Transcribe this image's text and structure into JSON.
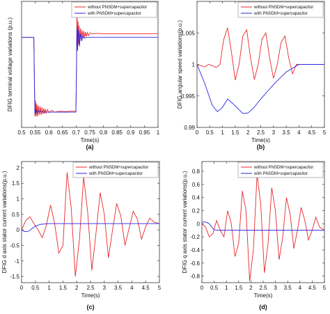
{
  "chart_data": [
    {
      "panel": "(a)",
      "type": "line",
      "title": "",
      "xlabel": "Time(s)",
      "ylabel": "DFIG terminal voltage variations (p.u.)",
      "xlim": [
        0.5,
        1
      ],
      "ylim": [
        0,
        1.4
      ],
      "xticks": [
        "0.5",
        "0.55",
        "0.6",
        "0.65",
        "0.7",
        "0.75",
        "0.8",
        "0.85",
        "0.9",
        "0.95",
        "1"
      ],
      "yticks": [],
      "legend": "top-right",
      "series": [
        {
          "name": "without PNSDM+supercapacitor",
          "color": "#e8262b",
          "x": [
            0.5,
            0.545,
            0.547,
            0.549,
            0.5505,
            0.552,
            0.554,
            0.556,
            0.558,
            0.56,
            0.563,
            0.566,
            0.569,
            0.572,
            0.575,
            0.578,
            0.581,
            0.584,
            0.587,
            0.59,
            0.595,
            0.6,
            0.61,
            0.62,
            0.64,
            0.66,
            0.68,
            0.699,
            0.701,
            0.703,
            0.705,
            0.707,
            0.709,
            0.711,
            0.713,
            0.716,
            0.719,
            0.722,
            0.725,
            0.728,
            0.731,
            0.734,
            0.737,
            0.741,
            0.745,
            0.75,
            0.76,
            0.78,
            0.8,
            0.85,
            0.9,
            0.95,
            1.0
          ],
          "y": [
            1.0,
            1.0,
            0.55,
            0.12,
            0.3,
            0.13,
            0.27,
            0.12,
            0.25,
            0.13,
            0.24,
            0.14,
            0.23,
            0.14,
            0.22,
            0.15,
            0.21,
            0.15,
            0.205,
            0.16,
            0.2,
            0.165,
            0.19,
            0.17,
            0.18,
            0.175,
            0.18,
            0.18,
            0.6,
            1.38,
            0.85,
            1.18,
            0.92,
            1.13,
            0.95,
            1.1,
            0.97,
            1.08,
            0.99,
            1.07,
            1.0,
            1.06,
            1.01,
            1.055,
            1.02,
            1.05,
            1.04,
            1.045,
            1.04,
            1.04,
            1.04,
            1.04,
            1.04
          ]
        },
        {
          "name": "with PNSDM+supercapacitor",
          "color": "#2727e6",
          "x": [
            0.5,
            0.545,
            0.547,
            0.549,
            0.552,
            0.556,
            0.56,
            0.565,
            0.57,
            0.58,
            0.6,
            0.65,
            0.699,
            0.701,
            0.703,
            0.705,
            0.708,
            0.712,
            0.716,
            0.72,
            0.725,
            0.73,
            0.74,
            0.75,
            0.8,
            0.9,
            1.0
          ],
          "y": [
            1.0,
            1.0,
            0.5,
            0.15,
            0.2,
            0.16,
            0.18,
            0.17,
            0.175,
            0.17,
            0.17,
            0.17,
            0.17,
            0.6,
            1.12,
            0.86,
            1.08,
            0.9,
            1.04,
            0.96,
            1.02,
            0.99,
            1.0,
            1.0,
            1.0,
            1.0,
            1.0
          ]
        }
      ]
    },
    {
      "panel": "(b)",
      "type": "line",
      "title": "",
      "xlabel": "Time(s)",
      "ylabel": "DFIG angular speed variations(p.u.)",
      "xlim": [
        0,
        5
      ],
      "ylim": [
        0.99,
        1.01
      ],
      "xticks": [
        "0",
        "0.5",
        "1",
        "1.5",
        "2",
        "2.5",
        "3",
        "3.5",
        "4",
        "4.5",
        "5"
      ],
      "yticks": [
        "0.99",
        "0.995",
        "1",
        "1.005"
      ],
      "legend": "top-right",
      "series": [
        {
          "name": "without PNSDM+supercapacitor",
          "color": "#e8262b",
          "x": [
            0.0,
            0.15,
            0.3,
            0.45,
            0.6,
            0.75,
            0.9,
            1.05,
            1.2,
            1.35,
            1.5,
            1.65,
            1.8,
            1.95,
            2.1,
            2.25,
            2.4,
            2.55,
            2.7,
            2.85,
            3.0,
            3.15,
            3.3,
            3.45,
            3.6,
            3.75,
            3.9,
            4.05,
            4.2,
            4.35,
            4.5,
            4.65,
            4.8,
            5.0
          ],
          "y": [
            1.0,
            0.9998,
            0.9996,
            1.0,
            0.9998,
            0.9995,
            1.0,
            1.004,
            1.0058,
            1.002,
            0.9975,
            1.0,
            1.0045,
            1.0055,
            1.001,
            0.9976,
            1.0,
            1.004,
            1.005,
            1.001,
            0.9978,
            1.0,
            1.0035,
            1.0045,
            1.001,
            0.9985,
            1.0,
            1.0,
            1.0,
            1.0,
            1.0,
            1.0,
            1.0,
            1.0
          ]
        },
        {
          "name": "with PNSDM+supercapacitor",
          "color": "#2727e6",
          "x": [
            0.0,
            0.3,
            0.6,
            0.8,
            1.0,
            1.2,
            1.4,
            1.6,
            1.8,
            2.0,
            2.2,
            2.5,
            3.0,
            3.5,
            4.0,
            4.2,
            4.5,
            5.0
          ],
          "y": [
            1.0,
            0.997,
            0.9935,
            0.9925,
            0.9932,
            0.9945,
            0.9938,
            0.993,
            0.9922,
            0.9923,
            0.993,
            0.9945,
            0.9968,
            0.9988,
            1.0,
            1.0,
            1.0,
            1.0
          ]
        }
      ]
    },
    {
      "panel": "(c)",
      "type": "line",
      "title": "",
      "xlabel": "Time(s)",
      "ylabel": "DFIG d axis stator current variations(p.u.)",
      "xlim": [
        0,
        5
      ],
      "ylim": [
        -1.7,
        2.2
      ],
      "xticks": [
        "0",
        "0.5",
        "1",
        "1.5",
        "2",
        "2.5",
        "3",
        "3.5",
        "4",
        "4.5",
        "5"
      ],
      "yticks": [
        "-1.5",
        "-1",
        "-0.5",
        "0",
        "0.5",
        "1",
        "1.5",
        "2"
      ],
      "legend": "top-right",
      "series": [
        {
          "name": "without PNSDM+supercapacitor",
          "color": "#e8262b",
          "x": [
            0.0,
            0.15,
            0.3,
            0.45,
            0.6,
            0.75,
            0.9,
            1.05,
            1.2,
            1.35,
            1.5,
            1.65,
            1.8,
            1.95,
            2.1,
            2.25,
            2.4,
            2.55,
            2.7,
            2.85,
            3.0,
            3.15,
            3.3,
            3.45,
            3.6,
            3.75,
            3.9,
            4.05,
            4.2,
            4.35,
            4.5,
            4.65,
            4.8,
            5.0
          ],
          "y": [
            0.0,
            0.3,
            0.42,
            0.2,
            0.0,
            -0.25,
            0.15,
            0.8,
            0.2,
            -0.75,
            -0.5,
            1.85,
            0.7,
            -1.5,
            -0.3,
            1.7,
            0.55,
            -1.3,
            -0.1,
            1.2,
            0.5,
            -0.9,
            0.0,
            0.85,
            0.45,
            -0.5,
            0.05,
            0.6,
            0.35,
            -0.3,
            0.1,
            0.38,
            0.25,
            0.2
          ]
        },
        {
          "name": "with PNSDM+supercapacitor",
          "color": "#2727e6",
          "x": [
            0.0,
            0.1,
            0.2,
            0.3,
            0.4,
            0.5,
            0.7,
            1.0,
            2.0,
            3.0,
            4.0,
            5.0
          ],
          "y": [
            0.0,
            -0.05,
            -0.06,
            -0.02,
            0.06,
            0.12,
            0.18,
            0.2,
            0.2,
            0.2,
            0.2,
            0.2
          ]
        }
      ]
    },
    {
      "panel": "(d)",
      "type": "line",
      "title": "",
      "xlabel": "Time(s)",
      "ylabel": "DFIG q axis stator current variations(p.u.)",
      "xlim": [
        0,
        5
      ],
      "ylim": [
        -0.9,
        0.95
      ],
      "xticks": [
        "0",
        "0.5",
        "1",
        "1.5",
        "2",
        "2.5",
        "3",
        "3.5",
        "4",
        "4.5",
        "5"
      ],
      "yticks": [
        "-0.8",
        "-0.6",
        "-0.4",
        "-0.2",
        "0",
        "0.2",
        "0.4",
        "0.6",
        "0.8"
      ],
      "legend": "top-right",
      "series": [
        {
          "name": "without PNSDM+supercapacitor",
          "color": "#e8262b",
          "x": [
            0.0,
            0.15,
            0.3,
            0.45,
            0.6,
            0.75,
            0.9,
            1.05,
            1.2,
            1.35,
            1.5,
            1.65,
            1.8,
            1.95,
            2.1,
            2.25,
            2.4,
            2.55,
            2.7,
            2.85,
            3.0,
            3.15,
            3.3,
            3.45,
            3.6,
            3.75,
            3.9,
            4.05,
            4.2,
            4.35,
            4.5,
            4.65,
            4.8,
            5.0
          ],
          "y": [
            0.0,
            -0.05,
            -0.2,
            -0.15,
            0.05,
            -0.1,
            -0.2,
            0.2,
            0.0,
            -0.5,
            -0.3,
            0.5,
            0.2,
            -0.88,
            -0.4,
            0.75,
            0.3,
            -0.75,
            -0.3,
            0.55,
            0.2,
            -0.55,
            -0.2,
            0.4,
            0.15,
            -0.38,
            -0.1,
            0.25,
            0.05,
            -0.25,
            -0.1,
            0.1,
            -0.05,
            -0.1
          ]
        },
        {
          "name": "with PNSDM+supercapacitor",
          "color": "#2727e6",
          "x": [
            0.0,
            0.1,
            0.2,
            0.3,
            0.4,
            0.5,
            0.6,
            1.0,
            2.0,
            3.0,
            4.0,
            5.0
          ],
          "y": [
            0.02,
            0.03,
            0.02,
            0.0,
            -0.05,
            -0.09,
            -0.1,
            -0.1,
            -0.1,
            -0.1,
            -0.1,
            -0.1
          ]
        }
      ]
    }
  ]
}
